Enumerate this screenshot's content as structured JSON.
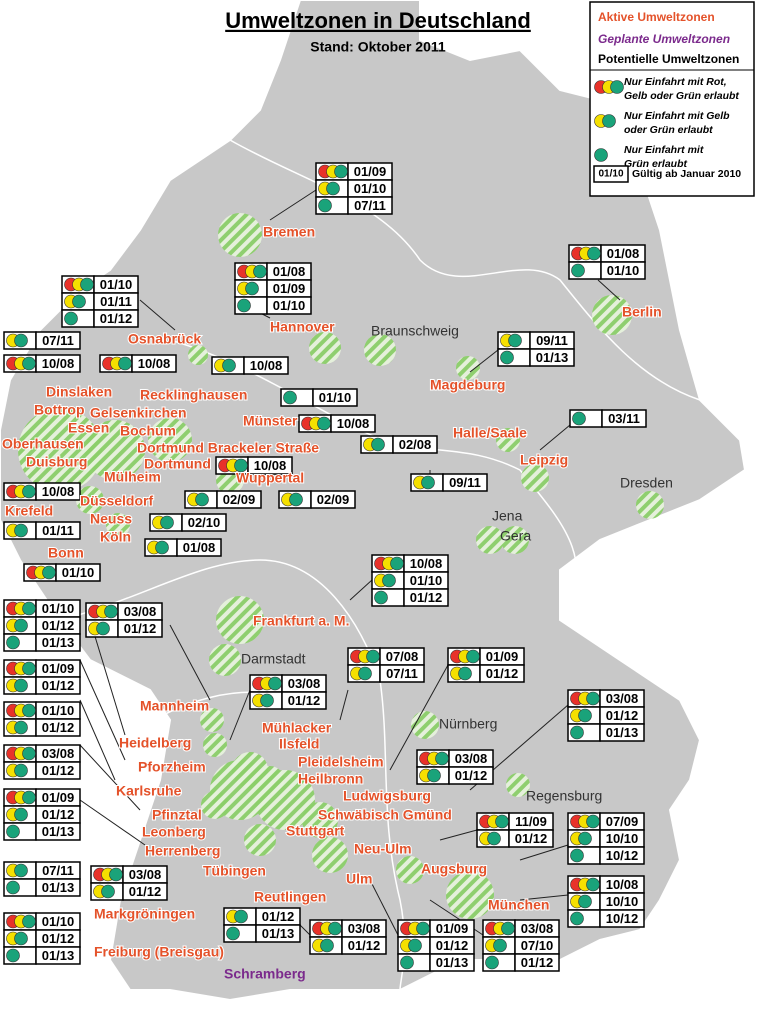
{
  "title": "Umweltzonen in Deutschland",
  "subtitle": "Stand: Oktober 2011",
  "legend": {
    "active": "Aktive Umweltzonen",
    "planned": "Geplante Umweltzonen",
    "potential": "Potentielle Umweltzonen",
    "rules": [
      {
        "signs": "red-yellow-green",
        "lines": [
          "Nur Einfahrt mit Rot,",
          "Gelb oder Grün erlaubt"
        ]
      },
      {
        "signs": "yellow-green",
        "lines": [
          "Nur Einfahrt mit Gelb",
          "oder Grün erlaubt"
        ]
      },
      {
        "signs": "green",
        "lines": [
          "Nur Einfahrt mit",
          "Grün erlaubt"
        ]
      }
    ],
    "example": {
      "date": "01/10",
      "text": "Gültig ab Januar 2010"
    }
  },
  "cities": {
    "active": [
      "Bremen",
      "Hannover",
      "Osnabrück",
      "Berlin",
      "Dinslaken",
      "Bottrop",
      "Essen",
      "Gelsenkirchen",
      "Recklinghausen",
      "Münster",
      "Bochum",
      "Dortmund Brackeler Straße",
      "Dortmund",
      "Oberhausen",
      "Duisburg",
      "Mülheim",
      "Düsseldorf",
      "Wuppertal",
      "Krefeld",
      "Neuss",
      "Köln",
      "Bonn",
      "Magdeburg",
      "Halle/Saale",
      "Leipzig",
      "Frankfurt a. M.",
      "Mannheim",
      "Heidelberg",
      "Mühlacker",
      "Ilsfeld",
      "Pleidelsheim",
      "Heilbronn",
      "Pforzheim",
      "Karlsruhe",
      "Ludwigsburg",
      "Pfinztal",
      "Schwäbisch Gmünd",
      "Stuttgart",
      "Leonberg",
      "Neu-Ulm",
      "Herrenberg",
      "Tübingen",
      "Augsburg",
      "Ulm",
      "Reutlingen",
      "München",
      "Markgröningen",
      "Freiburg (Breisgau)"
    ],
    "planned": [
      "Schramberg"
    ],
    "other": [
      "Braunschweig",
      "Dresden",
      "Jena",
      "Gera",
      "Darmstadt",
      "Nürnberg",
      "Regensburg"
    ]
  },
  "zones": [
    {
      "rows": [
        {
          "date": "01/09",
          "signs": "red-yellow-green"
        },
        {
          "date": "01/10",
          "signs": "yellow-green"
        },
        {
          "date": "07/11",
          "signs": "green"
        }
      ]
    },
    {
      "rows": [
        {
          "date": "01/08",
          "signs": "red-yellow-green"
        },
        {
          "date": "01/09",
          "signs": "yellow-green"
        },
        {
          "date": "01/10",
          "signs": "green"
        }
      ]
    },
    {
      "rows": [
        {
          "date": "01/10",
          "signs": "red-yellow-green"
        },
        {
          "date": "01/11",
          "signs": "yellow-green"
        },
        {
          "date": "01/12",
          "signs": "green"
        }
      ]
    },
    {
      "rows": [
        {
          "date": "01/08",
          "signs": "red-yellow-green"
        },
        {
          "date": "01/10",
          "signs": "green"
        }
      ]
    },
    {
      "rows": [
        {
          "date": "07/11",
          "signs": "yellow-green"
        }
      ]
    },
    {
      "rows": [
        {
          "date": "10/08",
          "signs": "red-yellow-green"
        }
      ]
    },
    {
      "rows": [
        {
          "date": "10/08",
          "signs": "red-yellow-green"
        }
      ]
    },
    {
      "rows": [
        {
          "date": "10/08",
          "signs": "yellow-green"
        }
      ]
    },
    {
      "rows": [
        {
          "date": "01/10",
          "signs": "green"
        }
      ]
    },
    {
      "rows": [
        {
          "date": "10/08",
          "signs": "red-yellow-green"
        }
      ]
    },
    {
      "rows": [
        {
          "date": "02/08",
          "signs": "yellow-green"
        }
      ]
    },
    {
      "rows": [
        {
          "date": "09/11",
          "signs": "yellow-green"
        },
        {
          "date": "01/13",
          "signs": "green"
        }
      ]
    },
    {
      "rows": [
        {
          "date": "03/11",
          "signs": "green"
        }
      ]
    },
    {
      "rows": [
        {
          "date": "09/11",
          "signs": "yellow-green"
        }
      ]
    },
    {
      "rows": [
        {
          "date": "10/08",
          "signs": "red-yellow-green"
        }
      ]
    },
    {
      "rows": [
        {
          "date": "10/08",
          "signs": "red-yellow-green"
        }
      ]
    },
    {
      "rows": [
        {
          "date": "02/09",
          "signs": "yellow-green"
        }
      ]
    },
    {
      "rows": [
        {
          "date": "02/09",
          "signs": "yellow-green"
        }
      ]
    },
    {
      "rows": [
        {
          "date": "01/11",
          "signs": "yellow-green"
        }
      ]
    },
    {
      "rows": [
        {
          "date": "02/10",
          "signs": "yellow-green"
        }
      ]
    },
    {
      "rows": [
        {
          "date": "01/08",
          "signs": "yellow-green"
        }
      ]
    },
    {
      "rows": [
        {
          "date": "01/10",
          "signs": "red-yellow-green"
        }
      ]
    },
    {
      "rows": [
        {
          "date": "10/08",
          "signs": "red-yellow-green"
        },
        {
          "date": "01/10",
          "signs": "yellow-green"
        },
        {
          "date": "01/12",
          "signs": "green"
        }
      ]
    },
    {
      "rows": [
        {
          "date": "01/10",
          "signs": "red-yellow-green"
        },
        {
          "date": "01/12",
          "signs": "yellow-green"
        },
        {
          "date": "01/13",
          "signs": "green"
        }
      ]
    },
    {
      "rows": [
        {
          "date": "03/08",
          "signs": "red-yellow-green"
        },
        {
          "date": "01/12",
          "signs": "yellow-green"
        }
      ]
    },
    {
      "rows": [
        {
          "date": "07/08",
          "signs": "red-yellow-green"
        },
        {
          "date": "07/11",
          "signs": "yellow-green"
        }
      ]
    },
    {
      "rows": [
        {
          "date": "01/09",
          "signs": "red-yellow-green"
        },
        {
          "date": "01/12",
          "signs": "yellow-green"
        }
      ]
    },
    {
      "rows": [
        {
          "date": "03/08",
          "signs": "red-yellow-green"
        },
        {
          "date": "01/12",
          "signs": "yellow-green"
        }
      ]
    },
    {
      "rows": [
        {
          "date": "01/09",
          "signs": "red-yellow-green"
        },
        {
          "date": "01/12",
          "signs": "yellow-green"
        }
      ]
    },
    {
      "rows": [
        {
          "date": "01/10",
          "signs": "red-yellow-green"
        },
        {
          "date": "01/12",
          "signs": "yellow-green"
        }
      ]
    },
    {
      "rows": [
        {
          "date": "03/08",
          "signs": "red-yellow-green"
        },
        {
          "date": "01/12",
          "signs": "yellow-green"
        },
        {
          "date": "01/13",
          "signs": "green"
        }
      ]
    },
    {
      "rows": [
        {
          "date": "03/08",
          "signs": "red-yellow-green"
        },
        {
          "date": "01/12",
          "signs": "yellow-green"
        }
      ]
    },
    {
      "rows": [
        {
          "date": "03/08",
          "signs": "red-yellow-green"
        },
        {
          "date": "01/12",
          "signs": "yellow-green"
        }
      ]
    },
    {
      "rows": [
        {
          "date": "01/09",
          "signs": "red-yellow-green"
        },
        {
          "date": "01/12",
          "signs": "yellow-green"
        },
        {
          "date": "01/13",
          "signs": "green"
        }
      ]
    },
    {
      "rows": [
        {
          "date": "11/09",
          "signs": "red-yellow-green"
        },
        {
          "date": "01/12",
          "signs": "yellow-green"
        }
      ]
    },
    {
      "rows": [
        {
          "date": "07/09",
          "signs": "red-yellow-green"
        },
        {
          "date": "10/10",
          "signs": "yellow-green"
        },
        {
          "date": "10/12",
          "signs": "green"
        }
      ]
    },
    {
      "rows": [
        {
          "date": "07/11",
          "signs": "yellow-green"
        },
        {
          "date": "01/13",
          "signs": "green"
        }
      ]
    },
    {
      "rows": [
        {
          "date": "03/08",
          "signs": "red-yellow-green"
        },
        {
          "date": "01/12",
          "signs": "yellow-green"
        }
      ]
    },
    {
      "rows": [
        {
          "date": "10/08",
          "signs": "red-yellow-green"
        },
        {
          "date": "10/10",
          "signs": "yellow-green"
        },
        {
          "date": "10/12",
          "signs": "green"
        }
      ]
    },
    {
      "rows": [
        {
          "date": "01/12",
          "signs": "yellow-green"
        },
        {
          "date": "01/13",
          "signs": "green"
        }
      ]
    },
    {
      "rows": [
        {
          "date": "03/08",
          "signs": "red-yellow-green"
        },
        {
          "date": "01/12",
          "signs": "yellow-green"
        }
      ]
    },
    {
      "rows": [
        {
          "date": "01/09",
          "signs": "red-yellow-green"
        },
        {
          "date": "01/12",
          "signs": "yellow-green"
        },
        {
          "date": "01/13",
          "signs": "green"
        }
      ]
    },
    {
      "rows": [
        {
          "date": "03/08",
          "signs": "red-yellow-green"
        },
        {
          "date": "07/10",
          "signs": "yellow-green"
        },
        {
          "date": "01/12",
          "signs": "green"
        }
      ]
    },
    {
      "rows": [
        {
          "date": "01/10",
          "signs": "red-yellow-green"
        },
        {
          "date": "01/12",
          "signs": "yellow-green"
        },
        {
          "date": "01/13",
          "signs": "green"
        }
      ]
    }
  ]
}
